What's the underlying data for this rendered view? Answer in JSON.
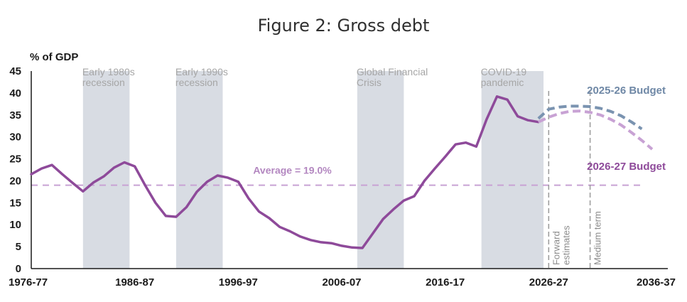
{
  "chart_data": {
    "type": "line",
    "title": "Figure 2: Gross debt",
    "ylabel": "% of GDP",
    "ylim": [
      0,
      45
    ],
    "yticks": [
      0,
      5,
      10,
      15,
      20,
      25,
      30,
      35,
      40,
      45
    ],
    "xlim": [
      1976,
      2036
    ],
    "xticks": [
      {
        "year": 1976,
        "label": "1976-77"
      },
      {
        "year": 1986,
        "label": "1986-87"
      },
      {
        "year": 1996,
        "label": "1996-97"
      },
      {
        "year": 2006,
        "label": "2006-07"
      },
      {
        "year": 2016,
        "label": "2016-17"
      },
      {
        "year": 2026,
        "label": "2026-27"
      },
      {
        "year": 2036,
        "label": "2036-37"
      }
    ],
    "grid": false,
    "shaded_periods": [
      {
        "label": [
          "Early 1980s",
          "recession"
        ],
        "start": 1981,
        "end": 1985.5
      },
      {
        "label": [
          "Early 1990s",
          "recession"
        ],
        "start": 1990,
        "end": 1994.5
      },
      {
        "label": [
          "Global Financial",
          "Crisis"
        ],
        "start": 2007.5,
        "end": 2012
      },
      {
        "label": [
          "COVID-19",
          "pandemic"
        ],
        "start": 2019.5,
        "end": 2025.5
      }
    ],
    "reference_line": {
      "label": "Average = 19.0%",
      "value": 19.0
    },
    "vertical_markers": [
      {
        "label": [
          "Forward",
          "estimates"
        ],
        "year": 2026
      },
      {
        "label": [
          "Medium term"
        ],
        "year": 2030
      }
    ],
    "series": [
      {
        "name": "2026-27 Budget",
        "color": "#8e4a9a",
        "style": "solid",
        "x": [
          1976,
          1977,
          1978,
          1979,
          1980,
          1981,
          1982,
          1983,
          1984,
          1985,
          1986,
          1987,
          1988,
          1989,
          1990,
          1991,
          1992,
          1993,
          1994,
          1995,
          1996,
          1997,
          1998,
          1999,
          2000,
          2001,
          2002,
          2003,
          2004,
          2005,
          2006,
          2007,
          2008,
          2009,
          2010,
          2011,
          2012,
          2013,
          2014,
          2015,
          2016,
          2017,
          2018,
          2019,
          2020,
          2021,
          2022,
          2023,
          2024,
          2025
        ],
        "values": [
          21.5,
          22.8,
          23.6,
          21.5,
          19.5,
          17.6,
          19.6,
          21.0,
          23.0,
          24.2,
          23.3,
          19.0,
          15.0,
          12.0,
          11.8,
          14.0,
          17.5,
          19.8,
          21.2,
          20.7,
          19.8,
          16.0,
          13.0,
          11.5,
          9.5,
          8.5,
          7.3,
          6.5,
          6.0,
          5.8,
          5.2,
          4.8,
          4.7,
          8.0,
          11.3,
          13.5,
          15.5,
          16.5,
          20.0,
          22.8,
          25.5,
          28.3,
          28.7,
          27.8,
          34.0,
          39.2,
          38.5,
          34.7,
          33.8,
          33.4
        ]
      },
      {
        "name": "2026-27 Budget projection",
        "color": "#c8a2d4",
        "style": "dashed",
        "x": [
          2025,
          2026,
          2027,
          2028,
          2029,
          2030,
          2031,
          2032,
          2033,
          2034,
          2035,
          2036
        ],
        "values": [
          33.4,
          34.5,
          35.3,
          35.8,
          35.9,
          35.6,
          35.0,
          34.0,
          32.7,
          31.0,
          29.2,
          27.2
        ]
      },
      {
        "name": "2025-26 Budget",
        "color": "#7a93b0",
        "style": "dashed",
        "x": [
          2025,
          2026,
          2027,
          2028,
          2029,
          2030,
          2031,
          2032,
          2033,
          2034,
          2035
        ],
        "values": [
          34.2,
          36.3,
          36.8,
          37.0,
          37.0,
          36.9,
          36.5,
          35.8,
          34.8,
          33.4,
          31.8
        ]
      }
    ],
    "legend": [
      {
        "text": "2025-26 Budget",
        "color": "#6f88a6"
      },
      {
        "text": "2026-27 Budget",
        "color": "#8e4a9a"
      }
    ],
    "colors": {
      "band": "#d8dce3",
      "average_line": "#c8a2d4",
      "marker_line": "#9a9a9a",
      "axis": "#1a1a1a"
    }
  }
}
